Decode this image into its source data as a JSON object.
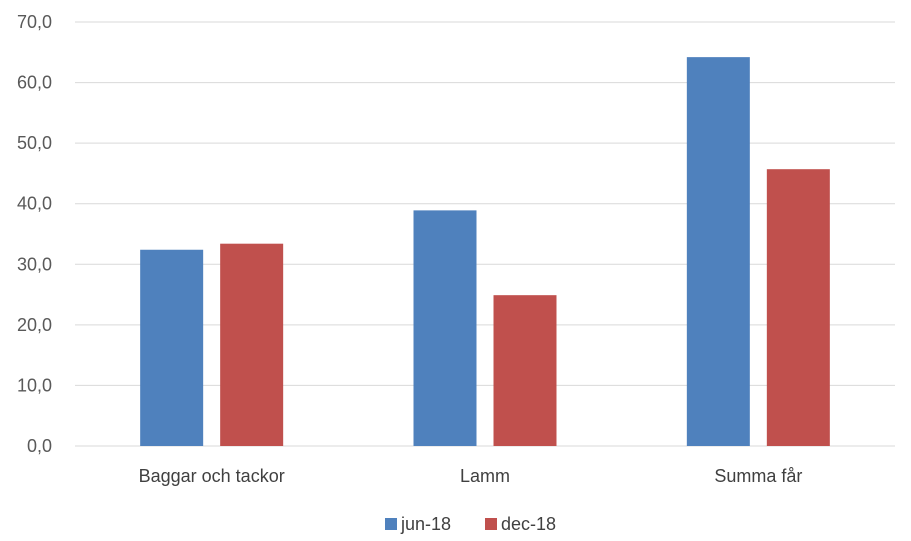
{
  "chart_data": {
    "type": "bar",
    "categories": [
      "Baggar och tackor",
      "Lamm",
      "Summa får"
    ],
    "series": [
      {
        "name": "jun-18",
        "values": [
          32.4,
          38.9,
          64.2
        ],
        "color": "#4f81bd"
      },
      {
        "name": "dec-18",
        "values": [
          33.4,
          24.9,
          45.7
        ],
        "color": "#c0504d"
      }
    ],
    "ylim": [
      0,
      70
    ],
    "yticks": [
      "0,0",
      "10,0",
      "20,0",
      "30,0",
      "40,0",
      "50,0",
      "60,0",
      "70,0"
    ],
    "grid": true,
    "legend_position": "bottom",
    "title": "",
    "xlabel": "",
    "ylabel": ""
  }
}
